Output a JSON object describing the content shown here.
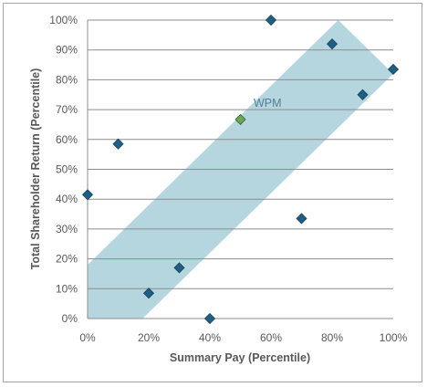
{
  "chart_data": {
    "type": "scatter",
    "xlabel": "Summary Pay (Percentile)",
    "ylabel": "Total Shareholder Return (Percentile)",
    "xlim": [
      0,
      100
    ],
    "ylim": [
      0,
      100
    ],
    "x_ticks": [
      "0%",
      "20%",
      "40%",
      "60%",
      "80%",
      "100%"
    ],
    "y_ticks": [
      "0%",
      "10%",
      "20%",
      "30%",
      "40%",
      "50%",
      "60%",
      "70%",
      "80%",
      "90%",
      "100%"
    ],
    "grid": "horizontal",
    "series": [
      {
        "color": "#1f5f84",
        "marker": "diamond",
        "points": [
          {
            "x": 0,
            "y": 41.5
          },
          {
            "x": 10,
            "y": 58.5
          },
          {
            "x": 20,
            "y": 8.5
          },
          {
            "x": 30,
            "y": 17
          },
          {
            "x": 40,
            "y": 0
          },
          {
            "x": 60,
            "y": 100
          },
          {
            "x": 70,
            "y": 33.5
          },
          {
            "x": 80,
            "y": 92
          },
          {
            "x": 90,
            "y": 75
          },
          {
            "x": 100,
            "y": 83.5
          }
        ]
      }
    ],
    "highlight": {
      "label": "WPM",
      "x": 50,
      "y": 66.7,
      "color": "#6aa84f"
    },
    "band": {
      "color": "#a9cfd9",
      "polygon": [
        [
          0,
          18
        ],
        [
          82,
          100
        ],
        [
          100,
          82
        ],
        [
          18,
          0
        ],
        [
          0,
          0
        ]
      ]
    }
  }
}
